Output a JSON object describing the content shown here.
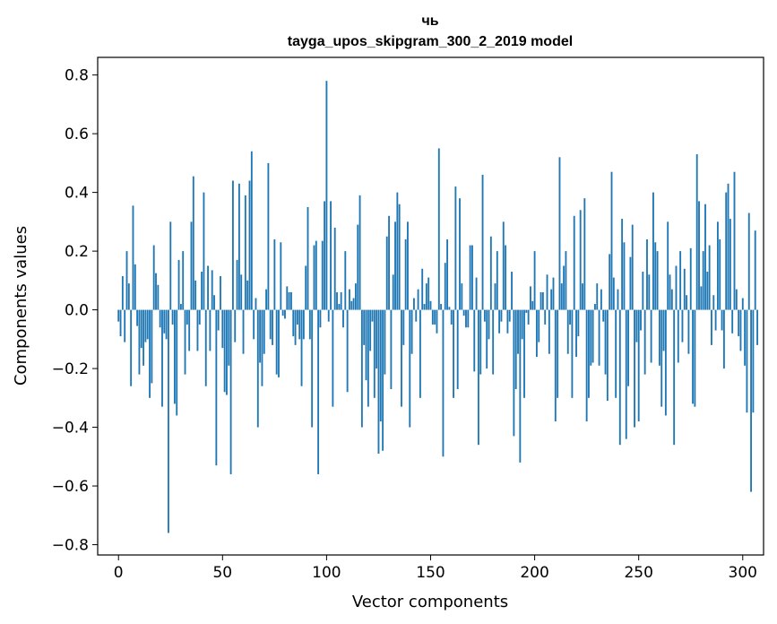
{
  "chart_data": {
    "type": "bar",
    "title": "чь",
    "subtitle": "tayga_upos_skipgram_300_2_2019 model",
    "xlabel": "Vector components",
    "ylabel": "Components values",
    "xlim": [
      -10,
      310
    ],
    "ylim": [
      -0.835,
      0.86
    ],
    "x_ticks": [
      0,
      50,
      100,
      150,
      200,
      250,
      300
    ],
    "x_tick_labels": [
      "0",
      "50",
      "100",
      "150",
      "200",
      "250",
      "300"
    ],
    "y_ticks": [
      -0.8,
      -0.6,
      -0.4,
      -0.2,
      0.0,
      0.2,
      0.4,
      0.6,
      0.8
    ],
    "y_tick_labels": [
      "−0.8",
      "−0.6",
      "−0.4",
      "−0.2",
      "0.0",
      "0.2",
      "0.4",
      "0.6",
      "0.8"
    ],
    "bar_color": "#1f77b4",
    "grid": false,
    "values": [
      -0.04,
      -0.09,
      0.115,
      -0.11,
      0.2,
      0.09,
      -0.26,
      0.355,
      0.155,
      -0.055,
      -0.22,
      -0.13,
      -0.19,
      -0.11,
      -0.1,
      -0.3,
      -0.25,
      0.22,
      0.125,
      0.085,
      -0.06,
      -0.33,
      -0.08,
      -0.1,
      -0.76,
      0.3,
      -0.05,
      -0.32,
      -0.36,
      0.17,
      0.02,
      0.2,
      -0.22,
      -0.05,
      -0.14,
      0.3,
      0.455,
      0.1,
      -0.14,
      -0.05,
      0.13,
      0.4,
      -0.26,
      0.15,
      -0.14,
      0.135,
      0.05,
      -0.53,
      -0.07,
      0.115,
      -0.13,
      -0.28,
      -0.29,
      -0.19,
      -0.56,
      0.44,
      -0.11,
      0.17,
      0.43,
      0.12,
      -0.15,
      0.39,
      0.1,
      0.44,
      0.54,
      -0.1,
      0.04,
      -0.4,
      -0.18,
      -0.26,
      -0.15,
      0.07,
      0.5,
      -0.1,
      -0.12,
      0.24,
      -0.22,
      -0.23,
      0.23,
      -0.02,
      -0.03,
      0.08,
      0.06,
      0.06,
      -0.09,
      -0.12,
      -0.05,
      -0.1,
      -0.26,
      -0.1,
      0.15,
      0.35,
      -0.1,
      -0.4,
      0.22,
      0.235,
      -0.56,
      -0.06,
      0.235,
      0.37,
      0.78,
      -0.04,
      0.37,
      -0.33,
      0.28,
      0.06,
      0.02,
      0.06,
      -0.06,
      0.2,
      -0.28,
      0.07,
      0.03,
      0.04,
      0.09,
      0.29,
      0.39,
      -0.4,
      -0.12,
      -0.24,
      -0.33,
      -0.14,
      -0.04,
      -0.3,
      -0.2,
      -0.49,
      -0.38,
      -0.48,
      -0.22,
      0.25,
      0.32,
      -0.27,
      0.12,
      0.3,
      0.4,
      0.36,
      -0.33,
      -0.12,
      0.24,
      0.3,
      -0.4,
      -0.15,
      0.04,
      -0.04,
      0.07,
      -0.3,
      0.14,
      0.02,
      0.09,
      0.11,
      0.03,
      -0.05,
      -0.05,
      -0.08,
      0.55,
      0.02,
      -0.5,
      0.16,
      0.24,
      0.01,
      -0.05,
      -0.3,
      0.42,
      -0.27,
      0.38,
      0.09,
      -0.02,
      -0.06,
      -0.06,
      0.22,
      0.22,
      -0.21,
      0.11,
      -0.46,
      -0.22,
      0.46,
      -0.04,
      -0.2,
      -0.1,
      0.25,
      -0.22,
      0.09,
      0.2,
      -0.08,
      -0.04,
      0.3,
      0.22,
      -0.08,
      -0.04,
      0.13,
      -0.43,
      -0.27,
      -0.15,
      -0.52,
      -0.1,
      -0.3,
      -0.01,
      -0.05,
      0.08,
      0.03,
      0.2,
      -0.16,
      -0.11,
      0.06,
      0.06,
      -0.05,
      0.12,
      -0.15,
      0.07,
      0.11,
      -0.38,
      -0.3,
      0.52,
      0.09,
      0.15,
      0.2,
      -0.15,
      -0.05,
      -0.3,
      0.32,
      -0.16,
      -0.09,
      0.34,
      0.09,
      0.38,
      -0.38,
      -0.3,
      -0.19,
      -0.18,
      0.02,
      0.09,
      -0.19,
      0.07,
      -0.04,
      -0.22,
      -0.31,
      0.19,
      0.47,
      0.11,
      -0.3,
      0.07,
      -0.46,
      0.31,
      0.23,
      -0.44,
      -0.26,
      0.18,
      0.29,
      -0.4,
      -0.11,
      -0.38,
      -0.07,
      0.13,
      -0.22,
      0.24,
      0.12,
      -0.18,
      0.4,
      0.23,
      0.2,
      -0.19,
      -0.33,
      -0.14,
      -0.36,
      0.3,
      0.12,
      0.07,
      -0.46,
      0.15,
      -0.18,
      0.2,
      -0.11,
      0.14,
      0.05,
      -0.15,
      0.21,
      -0.32,
      -0.33,
      0.53,
      0.37,
      0.08,
      0.2,
      0.36,
      0.13,
      0.22,
      -0.12,
      0.05,
      -0.07,
      0.3,
      0.24,
      -0.07,
      -0.2,
      0.4,
      0.43,
      0.31,
      -0.08,
      0.47,
      0.07,
      -0.09,
      -0.14,
      0.04,
      -0.19,
      -0.35,
      0.33,
      -0.62,
      -0.35,
      0.27,
      -0.12
    ]
  }
}
